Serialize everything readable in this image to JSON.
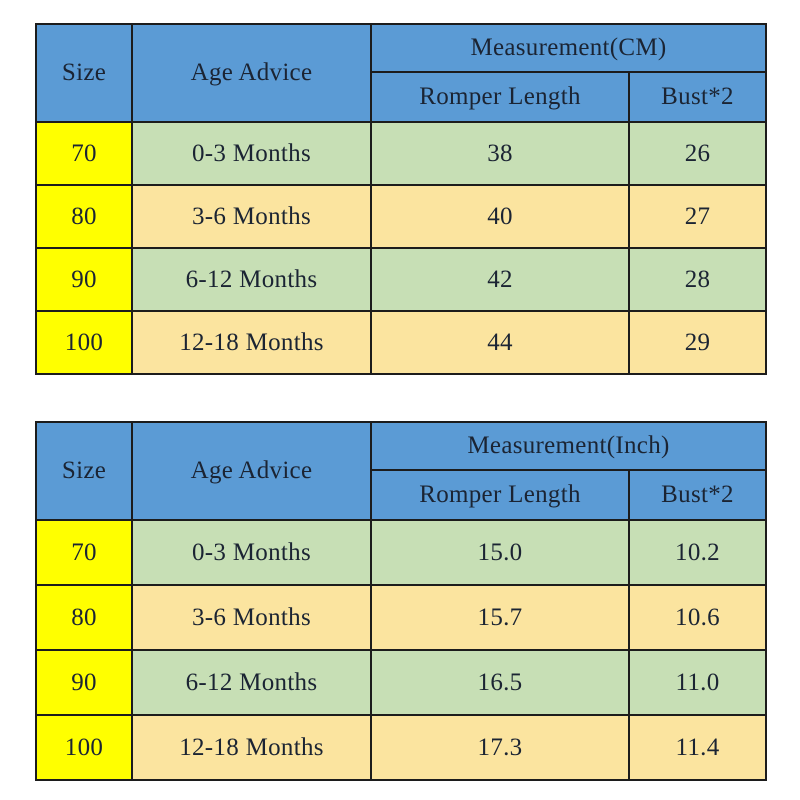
{
  "colors": {
    "header_bg": "#5b9bd5",
    "size_col_bg": "#ffff00",
    "row_green_bg": "#c7dfb5",
    "row_tan_bg": "#fbe49f",
    "border": "#1c1c1c",
    "text": "#1b2433",
    "page_bg": "#ffffff"
  },
  "tables": [
    {
      "header": {
        "size": "Size",
        "age": "Age Advice",
        "measurement": "Measurement(CM)",
        "romper": "Romper Length",
        "bust": "Bust*2"
      },
      "rows": [
        {
          "size": "70",
          "age": "0-3 Months",
          "length": "38",
          "bust": "26"
        },
        {
          "size": "80",
          "age": "3-6 Months",
          "length": "40",
          "bust": "27"
        },
        {
          "size": "90",
          "age": "6-12 Months",
          "length": "42",
          "bust": "28"
        },
        {
          "size": "100",
          "age": "12-18 Months",
          "length": "44",
          "bust": "29"
        }
      ]
    },
    {
      "header": {
        "size": "Size",
        "age": "Age Advice",
        "measurement": "Measurement(Inch)",
        "romper": "Romper Length",
        "bust": "Bust*2"
      },
      "rows": [
        {
          "size": "70",
          "age": "0-3 Months",
          "length": "15.0",
          "bust": "10.2"
        },
        {
          "size": "80",
          "age": "3-6 Months",
          "length": "15.7",
          "bust": "10.6"
        },
        {
          "size": "90",
          "age": "6-12 Months",
          "length": "16.5",
          "bust": "11.0"
        },
        {
          "size": "100",
          "age": "12-18 Months",
          "length": "17.3",
          "bust": "11.4"
        }
      ]
    }
  ],
  "chart_data": [
    {
      "type": "table",
      "title": "Measurement(CM)",
      "columns": [
        "Size",
        "Age Advice",
        "Romper Length",
        "Bust*2"
      ],
      "rows": [
        [
          "70",
          "0-3 Months",
          38,
          26
        ],
        [
          "80",
          "3-6 Months",
          40,
          27
        ],
        [
          "90",
          "6-12 Months",
          42,
          28
        ],
        [
          "100",
          "12-18 Months",
          44,
          29
        ]
      ]
    },
    {
      "type": "table",
      "title": "Measurement(Inch)",
      "columns": [
        "Size",
        "Age Advice",
        "Romper Length",
        "Bust*2"
      ],
      "rows": [
        [
          "70",
          "0-3 Months",
          15.0,
          10.2
        ],
        [
          "80",
          "3-6 Months",
          15.7,
          10.6
        ],
        [
          "90",
          "6-12 Months",
          16.5,
          11.0
        ],
        [
          "100",
          "12-18 Months",
          17.3,
          11.4
        ]
      ]
    }
  ]
}
